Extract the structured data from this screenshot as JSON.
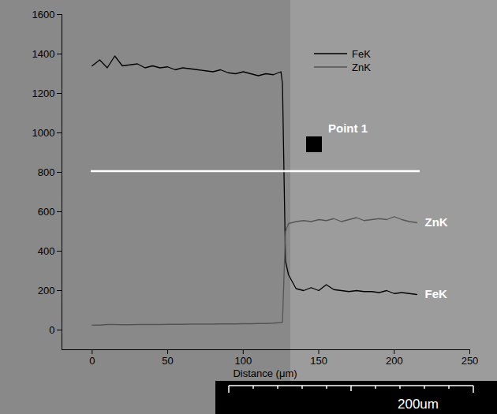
{
  "chart_data": {
    "type": "line",
    "x_label": "Distance (μm)",
    "x": [
      0,
      5,
      10,
      15,
      20,
      25,
      30,
      35,
      40,
      45,
      50,
      55,
      60,
      65,
      70,
      75,
      80,
      85,
      90,
      95,
      100,
      105,
      110,
      115,
      120,
      125,
      126,
      128,
      130,
      135,
      140,
      145,
      150,
      155,
      160,
      165,
      170,
      175,
      180,
      185,
      190,
      195,
      200,
      205,
      210,
      215
    ],
    "series": [
      {
        "name": "FeK",
        "color": "#000000",
        "values": [
          1340,
          1370,
          1330,
          1390,
          1340,
          1345,
          1350,
          1330,
          1340,
          1330,
          1335,
          1320,
          1330,
          1325,
          1320,
          1315,
          1310,
          1320,
          1305,
          1300,
          1310,
          1300,
          1290,
          1300,
          1295,
          1310,
          1250,
          350,
          280,
          210,
          200,
          215,
          200,
          230,
          205,
          200,
          195,
          200,
          195,
          195,
          190,
          200,
          185,
          190,
          185,
          180
        ]
      },
      {
        "name": "ZnK",
        "color": "#555555",
        "values": [
          25,
          25,
          28,
          28,
          27,
          27,
          28,
          28,
          28,
          28,
          29,
          29,
          29,
          30,
          30,
          30,
          30,
          31,
          31,
          31,
          32,
          32,
          33,
          33,
          35,
          38,
          40,
          500,
          540,
          550,
          555,
          550,
          560,
          555,
          565,
          550,
          560,
          570,
          555,
          560,
          565,
          560,
          575,
          560,
          550,
          545
        ]
      }
    ],
    "xlim": [
      -20,
      250
    ],
    "xticks": [
      0,
      50,
      100,
      150,
      200,
      250
    ],
    "ylim": [
      -100,
      1600
    ],
    "yticks": [
      0,
      200,
      400,
      600,
      800,
      1000,
      1200,
      1400,
      1600
    ],
    "legend": "top-right",
    "annotations": [
      "Point 1",
      "200um"
    ]
  }
}
